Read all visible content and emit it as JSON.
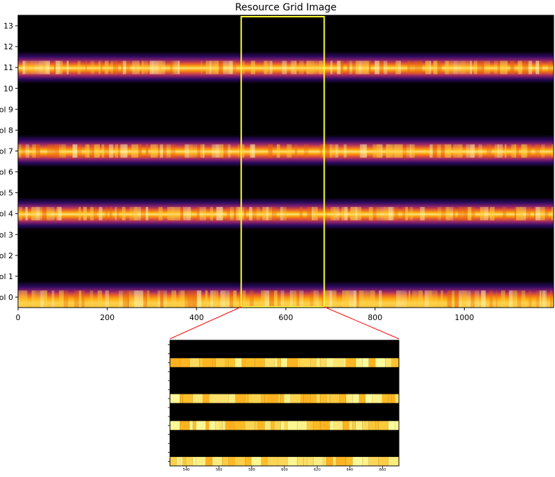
{
  "chart_data": [
    {
      "type": "heatmap",
      "title": "Resource Grid Image",
      "xlabel": "",
      "ylabel": "",
      "x_ticks": [
        0,
        200,
        400,
        600,
        800,
        1000
      ],
      "x_tick_labels": [
        "0",
        "200",
        "400",
        "600",
        "800",
        "1000"
      ],
      "xlim": [
        0,
        1200
      ],
      "ylim": [
        -0.5,
        13.5
      ],
      "y_tick_labels": [
        "ol 0",
        "ol 1",
        "ol 2",
        "ol 3",
        "ol 4",
        "ol 5",
        "ol 6",
        "ol 7",
        "ol 8",
        "ol 9",
        "10",
        "11",
        "12",
        "13"
      ],
      "active_symbols": [
        0,
        4,
        7,
        11
      ],
      "colormap": "inferno",
      "grid": false,
      "zoom_box": {
        "x_range": [
          500,
          686
        ],
        "y_range": [
          -0.5,
          13.5
        ],
        "color": "#ffff33"
      }
    },
    {
      "type": "heatmap",
      "title": "",
      "xlabel": "",
      "ylabel": "",
      "xlim": [
        530,
        670
      ],
      "x_ticks": [
        540,
        560,
        580,
        600,
        620,
        640,
        660
      ],
      "x_tick_labels": [
        "540",
        "560",
        "580",
        "600",
        "620",
        "640",
        "660"
      ],
      "ylim": [
        -0.5,
        13.5
      ],
      "active_symbols": [
        0,
        4,
        7,
        11
      ],
      "colormap": "inferno",
      "grid": false,
      "connector_color": "#ff0000"
    }
  ],
  "colors": {
    "zoom_box": "#ffff33",
    "connector": "#ff0000",
    "background": "#000000"
  }
}
